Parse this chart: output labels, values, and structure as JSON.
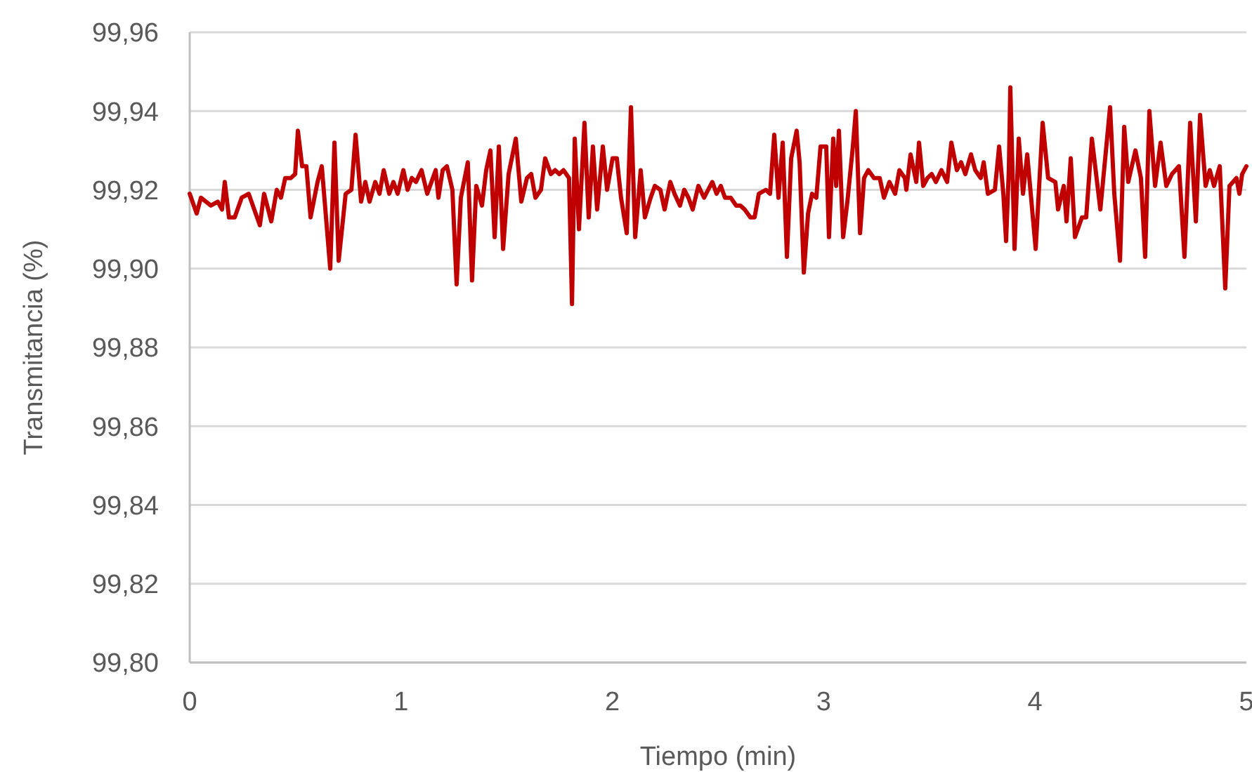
{
  "chart_data": {
    "type": "line",
    "xlabel": "Tiempo (min)",
    "ylabel": "Transmitancia (%)",
    "xlim": [
      0,
      5
    ],
    "xticks": [
      0,
      1,
      2,
      3,
      4,
      5
    ],
    "ylim": [
      99.8,
      99.96
    ],
    "yticks": [
      {
        "value": 99.8,
        "label": "99,80"
      },
      {
        "value": 99.82,
        "label": "99,82"
      },
      {
        "value": 99.84,
        "label": "99,84"
      },
      {
        "value": 99.86,
        "label": "99,86"
      },
      {
        "value": 99.88,
        "label": "99,88"
      },
      {
        "value": 99.9,
        "label": "99,90"
      },
      {
        "value": 99.92,
        "label": "99,92"
      },
      {
        "value": 99.94,
        "label": "99,94"
      },
      {
        "value": 99.96,
        "label": "99,96"
      }
    ],
    "grid": "y",
    "marker": "none",
    "line_style": "solid",
    "x": [
      0,
      0.033,
      0.053,
      0.1,
      0.133,
      0.153,
      0.166,
      0.186,
      0.213,
      0.246,
      0.279,
      0.299,
      0.332,
      0.352,
      0.386,
      0.412,
      0.432,
      0.452,
      0.479,
      0.499,
      0.512,
      0.532,
      0.552,
      0.572,
      0.605,
      0.625,
      0.665,
      0.685,
      0.705,
      0.738,
      0.765,
      0.785,
      0.811,
      0.831,
      0.851,
      0.878,
      0.898,
      0.918,
      0.944,
      0.964,
      0.984,
      1.011,
      1.031,
      1.051,
      1.071,
      1.097,
      1.124,
      1.144,
      1.164,
      1.177,
      1.197,
      1.217,
      1.243,
      1.263,
      1.283,
      1.316,
      1.336,
      1.356,
      1.383,
      1.403,
      1.423,
      1.443,
      1.463,
      1.483,
      1.509,
      1.543,
      1.569,
      1.596,
      1.616,
      1.636,
      1.662,
      1.682,
      1.709,
      1.729,
      1.749,
      1.769,
      1.795,
      1.809,
      1.822,
      1.842,
      1.868,
      1.888,
      1.908,
      1.928,
      1.955,
      1.975,
      2.001,
      2.021,
      2.041,
      2.068,
      2.088,
      2.108,
      2.134,
      2.154,
      2.181,
      2.201,
      2.227,
      2.247,
      2.274,
      2.294,
      2.32,
      2.34,
      2.36,
      2.38,
      2.407,
      2.434,
      2.453,
      2.473,
      2.493,
      2.513,
      2.533,
      2.56,
      2.586,
      2.606,
      2.626,
      2.653,
      2.673,
      2.693,
      2.726,
      2.746,
      2.766,
      2.786,
      2.806,
      2.826,
      2.846,
      2.872,
      2.886,
      2.906,
      2.926,
      2.945,
      2.965,
      2.985,
      3.012,
      3.025,
      3.045,
      3.059,
      3.072,
      3.092,
      3.112,
      3.138,
      3.152,
      3.172,
      3.191,
      3.211,
      3.238,
      3.265,
      3.285,
      3.311,
      3.338,
      3.358,
      3.384,
      3.391,
      3.411,
      3.438,
      3.451,
      3.471,
      3.491,
      3.511,
      3.531,
      3.557,
      3.584,
      3.604,
      3.63,
      3.65,
      3.67,
      3.697,
      3.717,
      3.743,
      3.757,
      3.777,
      3.81,
      3.83,
      3.85,
      3.863,
      3.876,
      3.883,
      3.903,
      3.923,
      3.943,
      3.963,
      4.003,
      4.036,
      4.062,
      4.096,
      4.109,
      4.136,
      4.149,
      4.169,
      4.189,
      4.222,
      4.242,
      4.269,
      4.309,
      4.355,
      4.375,
      4.402,
      4.422,
      4.441,
      4.475,
      4.501,
      4.521,
      4.541,
      4.568,
      4.594,
      4.621,
      4.648,
      4.681,
      4.688,
      4.707,
      4.734,
      4.761,
      4.781,
      4.807,
      4.827,
      4.847,
      4.874,
      4.9,
      4.92,
      4.953,
      4.967,
      4.98,
      5
    ],
    "series": [
      {
        "color": "#c00000",
        "values": [
          99.919,
          99.914,
          99.918,
          99.916,
          99.917,
          99.915,
          99.922,
          99.913,
          99.913,
          99.918,
          99.919,
          99.916,
          99.911,
          99.919,
          99.912,
          99.92,
          99.918,
          99.923,
          99.923,
          99.924,
          99.935,
          99.926,
          99.926,
          99.913,
          99.922,
          99.926,
          99.9,
          99.932,
          99.902,
          99.919,
          99.92,
          99.934,
          99.917,
          99.922,
          99.917,
          99.922,
          99.919,
          99.925,
          99.919,
          99.922,
          99.919,
          99.925,
          99.92,
          99.923,
          99.922,
          99.925,
          99.919,
          99.922,
          99.925,
          99.918,
          99.925,
          99.926,
          99.92,
          99.896,
          99.918,
          99.927,
          99.897,
          99.921,
          99.916,
          99.925,
          99.93,
          99.908,
          99.931,
          99.905,
          99.924,
          99.933,
          99.917,
          99.923,
          99.924,
          99.918,
          99.92,
          99.928,
          99.924,
          99.925,
          99.924,
          99.925,
          99.923,
          99.891,
          99.933,
          99.91,
          99.937,
          99.913,
          99.931,
          99.915,
          99.931,
          99.92,
          99.928,
          99.928,
          99.918,
          99.909,
          99.941,
          99.908,
          99.925,
          99.913,
          99.918,
          99.921,
          99.92,
          99.915,
          99.922,
          99.919,
          99.916,
          99.92,
          99.918,
          99.915,
          99.921,
          99.918,
          99.92,
          99.922,
          99.919,
          99.921,
          99.918,
          99.918,
          99.916,
          99.916,
          99.915,
          99.913,
          99.913,
          99.919,
          99.92,
          99.919,
          99.934,
          99.918,
          99.932,
          99.903,
          99.928,
          99.935,
          99.927,
          99.899,
          99.914,
          99.919,
          99.918,
          99.931,
          99.931,
          99.908,
          99.933,
          99.921,
          99.935,
          99.908,
          99.917,
          99.931,
          99.94,
          99.909,
          99.923,
          99.925,
          99.923,
          99.923,
          99.918,
          99.922,
          99.919,
          99.925,
          99.923,
          99.92,
          99.929,
          99.922,
          99.932,
          99.921,
          99.923,
          99.924,
          99.922,
          99.925,
          99.922,
          99.932,
          99.925,
          99.927,
          99.924,
          99.929,
          99.925,
          99.923,
          99.927,
          99.919,
          99.92,
          99.931,
          99.919,
          99.907,
          99.925,
          99.946,
          99.905,
          99.933,
          99.919,
          99.929,
          99.905,
          99.937,
          99.923,
          99.922,
          99.915,
          99.921,
          99.912,
          99.928,
          99.908,
          99.913,
          99.913,
          99.933,
          99.915,
          99.941,
          99.919,
          99.902,
          99.936,
          99.922,
          99.93,
          99.923,
          99.903,
          99.94,
          99.921,
          99.932,
          99.921,
          99.924,
          99.926,
          99.92,
          99.903,
          99.937,
          99.912,
          99.939,
          99.921,
          99.925,
          99.921,
          99.926,
          99.895,
          99.921,
          99.923,
          99.919,
          99.924,
          99.926
        ]
      }
    ]
  }
}
